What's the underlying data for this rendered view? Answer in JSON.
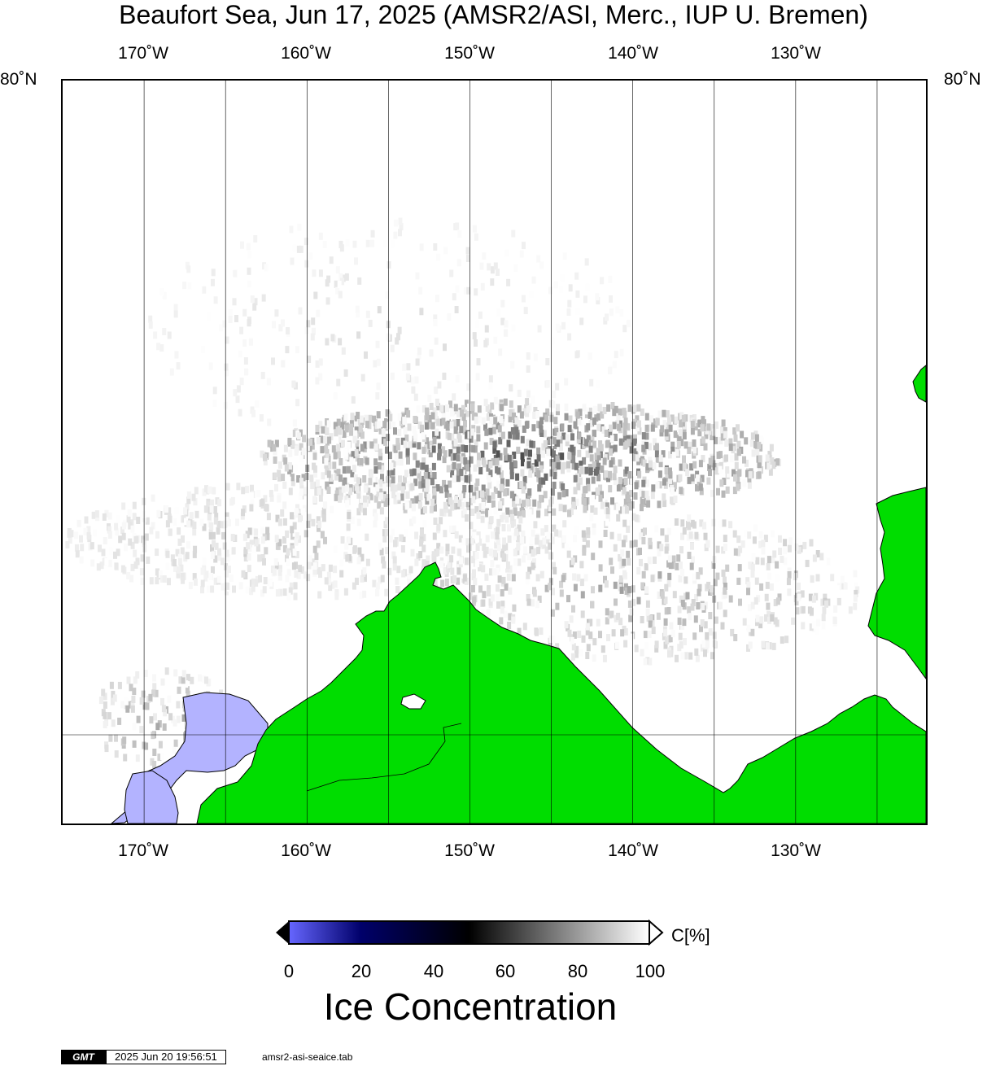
{
  "title": "Beaufort Sea, Jun 17, 2025 (AMSR2/ASI, Merc., IUP U. Bremen)",
  "map": {
    "lon_labels_top": [
      "170˚W",
      "160˚W",
      "150˚W",
      "140˚W",
      "130˚W"
    ],
    "lon_labels_bottom": [
      "170˚W",
      "160˚W",
      "150˚W",
      "140˚W",
      "130˚W"
    ],
    "lat_label_left": "80˚N",
    "lat_label_right": "80˚N",
    "lon_range": [
      -175,
      -122
    ],
    "land_color": "#00dd00",
    "ocean_color": "#ffffff",
    "open_water_color": "#b3b3ff"
  },
  "colorbar": {
    "ticks": [
      "0",
      "20",
      "40",
      "60",
      "80",
      "100"
    ],
    "unit": "C[%]",
    "title": "Ice Concentration",
    "stops": [
      {
        "value": 0,
        "color": "#6666ff"
      },
      {
        "value": 20,
        "color": "#00006a"
      },
      {
        "value": 50,
        "color": "#000000"
      },
      {
        "value": 100,
        "color": "#ffffff"
      }
    ]
  },
  "footer": {
    "logo": "GMT",
    "timestamp": "2025 Jun 20 19:56:51",
    "filename": "amsr2-asi-seaice.tab"
  }
}
